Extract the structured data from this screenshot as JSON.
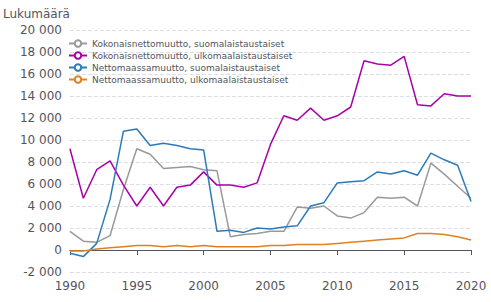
{
  "chart_data": {
    "type": "line",
    "y_label": "Lukumäärä",
    "x": [
      1990,
      1991,
      1992,
      1993,
      1994,
      1995,
      1996,
      1997,
      1998,
      1999,
      2000,
      2001,
      2002,
      2003,
      2004,
      2005,
      2006,
      2007,
      2008,
      2009,
      2010,
      2011,
      2012,
      2013,
      2014,
      2015,
      2016,
      2017,
      2018,
      2019,
      2020
    ],
    "series": [
      {
        "name": "Kokonaisnettomuutto, suomalaistaustaiset",
        "color": "#999999",
        "values": [
          1700,
          800,
          700,
          1300,
          5500,
          9200,
          8700,
          7400,
          7500,
          7600,
          7300,
          7200,
          1200,
          1400,
          1500,
          1700,
          1700,
          3900,
          3800,
          4000,
          3100,
          2900,
          3400,
          4800,
          4700,
          4800,
          4000,
          7900,
          6900,
          5800,
          4700
        ]
      },
      {
        "name": "Kokonaisnettomuutto, ulkomaalaistaustaiset",
        "color": "#aa00aa",
        "values": [
          9200,
          4700,
          7300,
          8100,
          5900,
          4000,
          5700,
          4000,
          5700,
          5900,
          7100,
          5900,
          5900,
          5700,
          6100,
          9600,
          12200,
          11800,
          12900,
          11800,
          12200,
          13000,
          17200,
          16900,
          16800,
          17600,
          13200,
          13100,
          14200,
          14000,
          14000
        ]
      },
      {
        "name": "Nettomaassamuutto, suomalaistaustaiset",
        "color": "#2b7bba",
        "values": [
          -300,
          -600,
          600,
          4600,
          10800,
          11000,
          9500,
          9700,
          9500,
          9200,
          9100,
          1700,
          1800,
          1600,
          2000,
          1900,
          2100,
          2200,
          4000,
          4300,
          6100,
          6200,
          6300,
          7100,
          6900,
          7200,
          6800,
          8800,
          8200,
          7700,
          4400
        ]
      },
      {
        "name": "Nettomaassamuutto, ulkomaalaistaustaiset",
        "color": "#e08020",
        "values": [
          -100,
          -100,
          100,
          200,
          300,
          400,
          400,
          300,
          400,
          300,
          400,
          300,
          300,
          300,
          300,
          400,
          400,
          500,
          500,
          500,
          600,
          700,
          800,
          900,
          1000,
          1100,
          1500,
          1500,
          1400,
          1200,
          900
        ]
      }
    ],
    "xlim": [
      1990,
      2020
    ],
    "xticks": [
      1990,
      1995,
      2000,
      2005,
      2010,
      2015,
      2020
    ],
    "ylim": [
      -2000,
      20000
    ],
    "yticks": [
      {
        "value": -2000,
        "label": "-2 000"
      },
      0,
      {
        "value": 2000,
        "label": "2 000"
      },
      {
        "value": 4000,
        "label": "4 000"
      },
      {
        "value": 6000,
        "label": "6 000"
      },
      {
        "value": 8000,
        "label": "8 000"
      },
      {
        "value": 10000,
        "label": "10 000"
      },
      {
        "value": 12000,
        "label": "12 000"
      },
      {
        "value": 14000,
        "label": "14 000"
      },
      {
        "value": 16000,
        "label": "16 000"
      },
      {
        "value": 18000,
        "label": "18 000"
      },
      {
        "value": 20000,
        "label": "20 000"
      }
    ],
    "grid": true,
    "legend": "upper left"
  }
}
